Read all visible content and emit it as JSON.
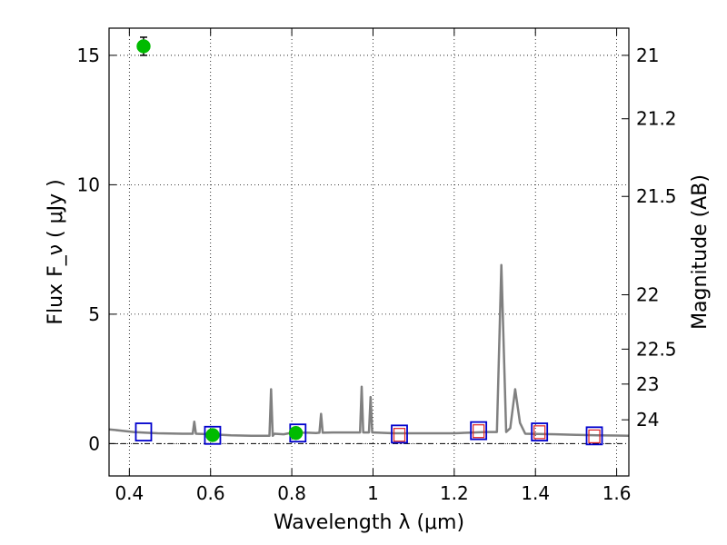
{
  "chart_data": {
    "type": "scatter",
    "xlabel": "Wavelength  λ (μm)",
    "ylabel_left": "Flux  F_ν  ( μJy )",
    "ylabel_right": "Magnitude (AB)",
    "xlim": [
      0.35,
      1.63
    ],
    "ylim": [
      -1.25,
      16.05
    ],
    "grid": true,
    "x_ticks": [
      0.4,
      0.6,
      0.8,
      1.0,
      1.2,
      1.4,
      1.6
    ],
    "x_tick_labels": [
      "0.4",
      "0.6",
      "0.8",
      "1",
      "1.2",
      "1.4",
      "1.6"
    ],
    "y_ticks": [
      0,
      5,
      10,
      15
    ],
    "y_tick_labels": [
      "0",
      "5",
      "10",
      "15"
    ],
    "right_ticks": [
      {
        "label": "21",
        "flux": 15.0
      },
      {
        "label": "21.2",
        "flux": 12.55
      },
      {
        "label": "21.5",
        "flux": 9.55
      },
      {
        "label": "22",
        "flux": 5.75
      },
      {
        "label": "22.5",
        "flux": 3.65
      },
      {
        "label": "23",
        "flux": 2.3
      },
      {
        "label": "24",
        "flux": 0.92
      }
    ],
    "observed_points": {
      "color": "#00bb00",
      "points": [
        {
          "x": 0.435,
          "y": 15.35,
          "yerr": 0.35
        },
        {
          "x": 0.605,
          "y": 0.33,
          "yerr": 0.08
        },
        {
          "x": 0.81,
          "y": 0.41,
          "yerr": 0.06
        }
      ]
    },
    "model_band_fluxes": {
      "color": "#0000cc",
      "points": [
        {
          "x": 0.435,
          "y": 0.45
        },
        {
          "x": 0.605,
          "y": 0.32
        },
        {
          "x": 0.815,
          "y": 0.41
        },
        {
          "x": 1.065,
          "y": 0.37
        },
        {
          "x": 1.26,
          "y": 0.5
        },
        {
          "x": 1.41,
          "y": 0.45
        },
        {
          "x": 1.545,
          "y": 0.3
        }
      ]
    },
    "upper_limit_boxes": {
      "color": "#dd2222",
      "points": [
        {
          "x": 1.065,
          "y": 0.34
        },
        {
          "x": 1.26,
          "y": 0.48
        },
        {
          "x": 1.41,
          "y": 0.44
        },
        {
          "x": 1.545,
          "y": 0.28
        }
      ]
    },
    "spectrum": {
      "color": "#808080",
      "x": [
        0.35,
        0.38,
        0.41,
        0.44,
        0.47,
        0.5,
        0.53,
        0.556,
        0.56,
        0.564,
        0.6,
        0.65,
        0.7,
        0.74,
        0.745,
        0.749,
        0.753,
        0.757,
        0.78,
        0.8,
        0.84,
        0.86,
        0.868,
        0.872,
        0.876,
        0.9,
        0.95,
        0.968,
        0.972,
        0.976,
        0.99,
        0.994,
        0.998,
        1.002,
        1.05,
        1.1,
        1.2,
        1.28,
        1.305,
        1.316,
        1.328,
        1.338,
        1.35,
        1.362,
        1.375,
        1.45,
        1.5,
        1.55,
        1.6,
        1.63
      ],
      "y": [
        0.55,
        0.5,
        0.45,
        0.42,
        0.4,
        0.39,
        0.38,
        0.38,
        0.85,
        0.38,
        0.36,
        0.32,
        0.3,
        0.3,
        0.3,
        2.1,
        0.3,
        0.38,
        0.36,
        0.42,
        0.42,
        0.41,
        0.42,
        1.15,
        0.42,
        0.43,
        0.43,
        0.43,
        2.2,
        0.43,
        0.43,
        1.8,
        0.43,
        0.43,
        0.4,
        0.4,
        0.4,
        0.45,
        0.45,
        6.9,
        0.45,
        0.6,
        2.1,
        0.8,
        0.38,
        0.36,
        0.34,
        0.32,
        0.31,
        0.3
      ]
    },
    "reference_line": {
      "y": 0,
      "style": "dashdot",
      "color": "#000000"
    }
  }
}
